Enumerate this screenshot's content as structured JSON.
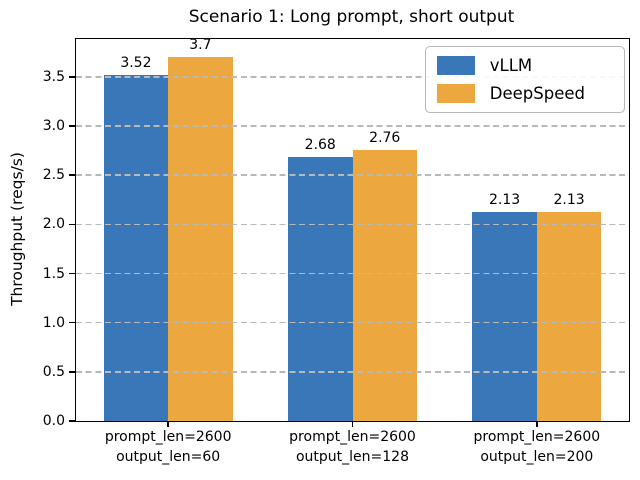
{
  "chart_data": {
    "type": "bar",
    "title": "Scenario 1: Long prompt, short output",
    "xlabel": "",
    "ylabel": "Throughput (reqs/s)",
    "categories": [
      "prompt_len=2600\noutput_len=60",
      "prompt_len=2600\noutput_len=128",
      "prompt_len=2600\noutput_len=200"
    ],
    "series": [
      {
        "name": "vLLM",
        "color": "#3a77b9",
        "values": [
          3.52,
          2.68,
          2.13
        ],
        "value_labels": [
          "3.52",
          "2.68",
          "2.13"
        ]
      },
      {
        "name": "DeepSpeed",
        "color": "#eca83e",
        "values": [
          3.7,
          2.76,
          2.13
        ],
        "value_labels": [
          "3.7",
          "2.76",
          "2.13"
        ]
      }
    ],
    "ylim": [
      0,
      3.885
    ],
    "yticks": [
      0.0,
      0.5,
      1.0,
      1.5,
      2.0,
      2.5,
      3.0,
      3.5
    ],
    "ytick_labels": [
      "0.0",
      "0.5",
      "1.0",
      "1.5",
      "2.0",
      "2.5",
      "3.0",
      "3.5"
    ],
    "grid": "horizontal-dashed",
    "gridline_color": "#b9b9b9",
    "legend_position": "upper-right",
    "bar_labels_shown": true
  }
}
